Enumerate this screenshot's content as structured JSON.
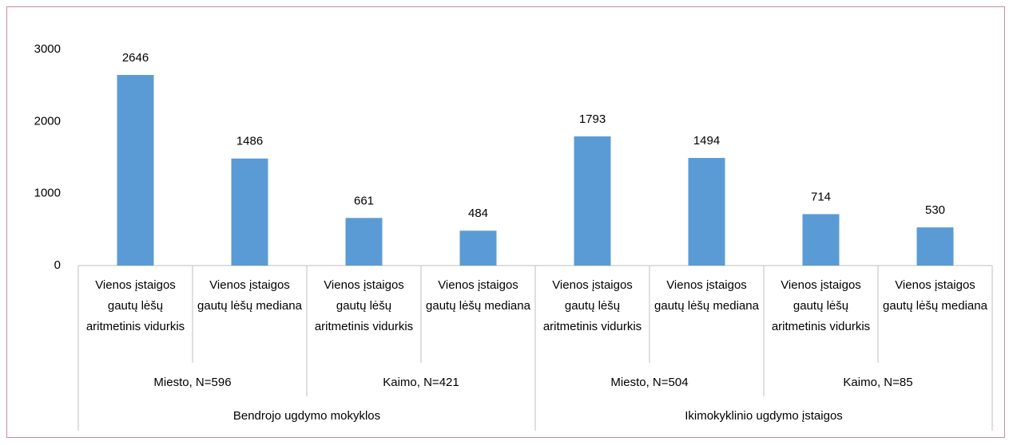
{
  "chart_data": {
    "type": "bar",
    "categories": [
      "Vienos įstaigos gautų lėšų aritmetinis vidurkis",
      "Vienos įstaigos gautų lėšų mediana",
      "Vienos įstaigos gautų lėšų aritmetinis vidurkis",
      "Vienos įstaigos gautų lėšų mediana",
      "Vienos įstaigos gautų lėšų aritmetinis vidurkis",
      "Vienos įstaigos gautų lėšų mediana",
      "Vienos įstaigos gautų lėšų aritmetinis vidurkis",
      "Vienos įstaigos gautų lėšų mediana"
    ],
    "category_groups": [
      {
        "name": "Bendrojo ugdymo mokyklos",
        "subgroups": [
          "Miesto, N=596",
          "Kaimo, N=421"
        ]
      },
      {
        "name": "Ikimokyklinio ugdymo įstaigos",
        "subgroups": [
          "Miesto, N=504",
          "Kaimo, N=85"
        ]
      }
    ],
    "values": [
      2646,
      1486,
      661,
      484,
      1793,
      1494,
      714,
      530
    ],
    "color": "#5b9bd5",
    "ylim": [
      0,
      3000
    ],
    "yticks": [
      0,
      1000,
      2000,
      3000
    ],
    "grid": false
  }
}
